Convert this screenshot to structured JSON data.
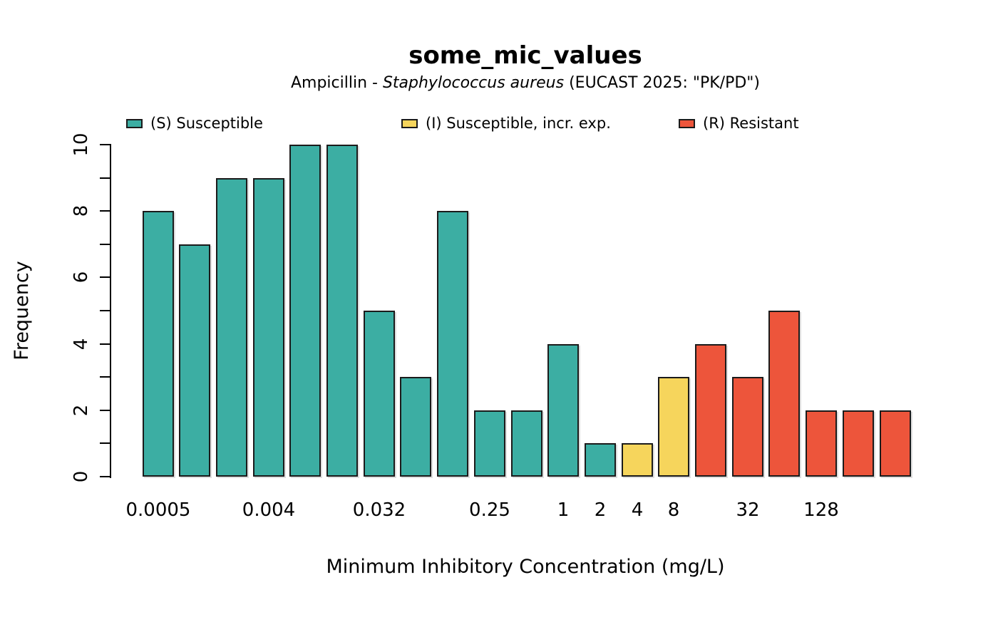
{
  "title": "some_mic_values",
  "subtitle_parts": [
    {
      "text": "Ampicillin - ",
      "italic": false
    },
    {
      "text": "Staphylococcus aureus",
      "italic": true
    },
    {
      "text": " (EUCAST 2025: \"PK/PD\")",
      "italic": false
    }
  ],
  "legend": {
    "items": [
      {
        "key": "S",
        "label": "(S) Susceptible",
        "color": "#3CAEA3"
      },
      {
        "key": "I",
        "label": "(I) Susceptible, incr. exp.",
        "color": "#F6D55C"
      },
      {
        "key": "R",
        "label": "(R) Resistant",
        "color": "#ED553B"
      }
    ]
  },
  "chart_data": {
    "type": "bar",
    "title": "some_mic_values",
    "xlabel": "Minimum Inhibitory Concentration (mg/L)",
    "ylabel": "Frequency",
    "ylim": [
      0,
      10
    ],
    "y_ticks_labeled": [
      0,
      2,
      4,
      6,
      8,
      10
    ],
    "y_ticks_unlabeled": [
      1,
      3,
      5,
      7,
      9
    ],
    "categories": [
      "0.0005",
      "0.001",
      "0.002",
      "0.004",
      "0.008",
      "0.016",
      "0.032",
      "0.064",
      "0.125",
      "0.25",
      "0.5",
      "1",
      "2",
      "4",
      "8",
      "16",
      "32",
      "64",
      "128",
      "256",
      "512"
    ],
    "values": [
      8,
      7,
      9,
      9,
      10,
      10,
      5,
      3,
      8,
      2,
      2,
      4,
      1,
      1,
      3,
      4,
      3,
      5,
      2,
      2,
      2
    ],
    "interpretations": [
      "S",
      "S",
      "S",
      "S",
      "S",
      "S",
      "S",
      "S",
      "S",
      "S",
      "S",
      "S",
      "S",
      "I",
      "I",
      "R",
      "R",
      "R",
      "R",
      "R",
      "R"
    ],
    "x_tick_labels": [
      {
        "index": 0,
        "label": "0.0005"
      },
      {
        "index": 3,
        "label": "0.004"
      },
      {
        "index": 6,
        "label": "0.032"
      },
      {
        "index": 9,
        "label": "0.25"
      },
      {
        "index": 11,
        "label": "1"
      },
      {
        "index": 12,
        "label": "2"
      },
      {
        "index": 13,
        "label": "4"
      },
      {
        "index": 14,
        "label": "8"
      },
      {
        "index": 16,
        "label": "32"
      },
      {
        "index": 18,
        "label": "128"
      }
    ],
    "colors": {
      "S": "#3CAEA3",
      "I": "#F6D55C",
      "R": "#ED553B"
    },
    "bar_border_color": "#1b1b1b",
    "axis_color": "#000000",
    "legend_position": "top",
    "grid": false
  }
}
